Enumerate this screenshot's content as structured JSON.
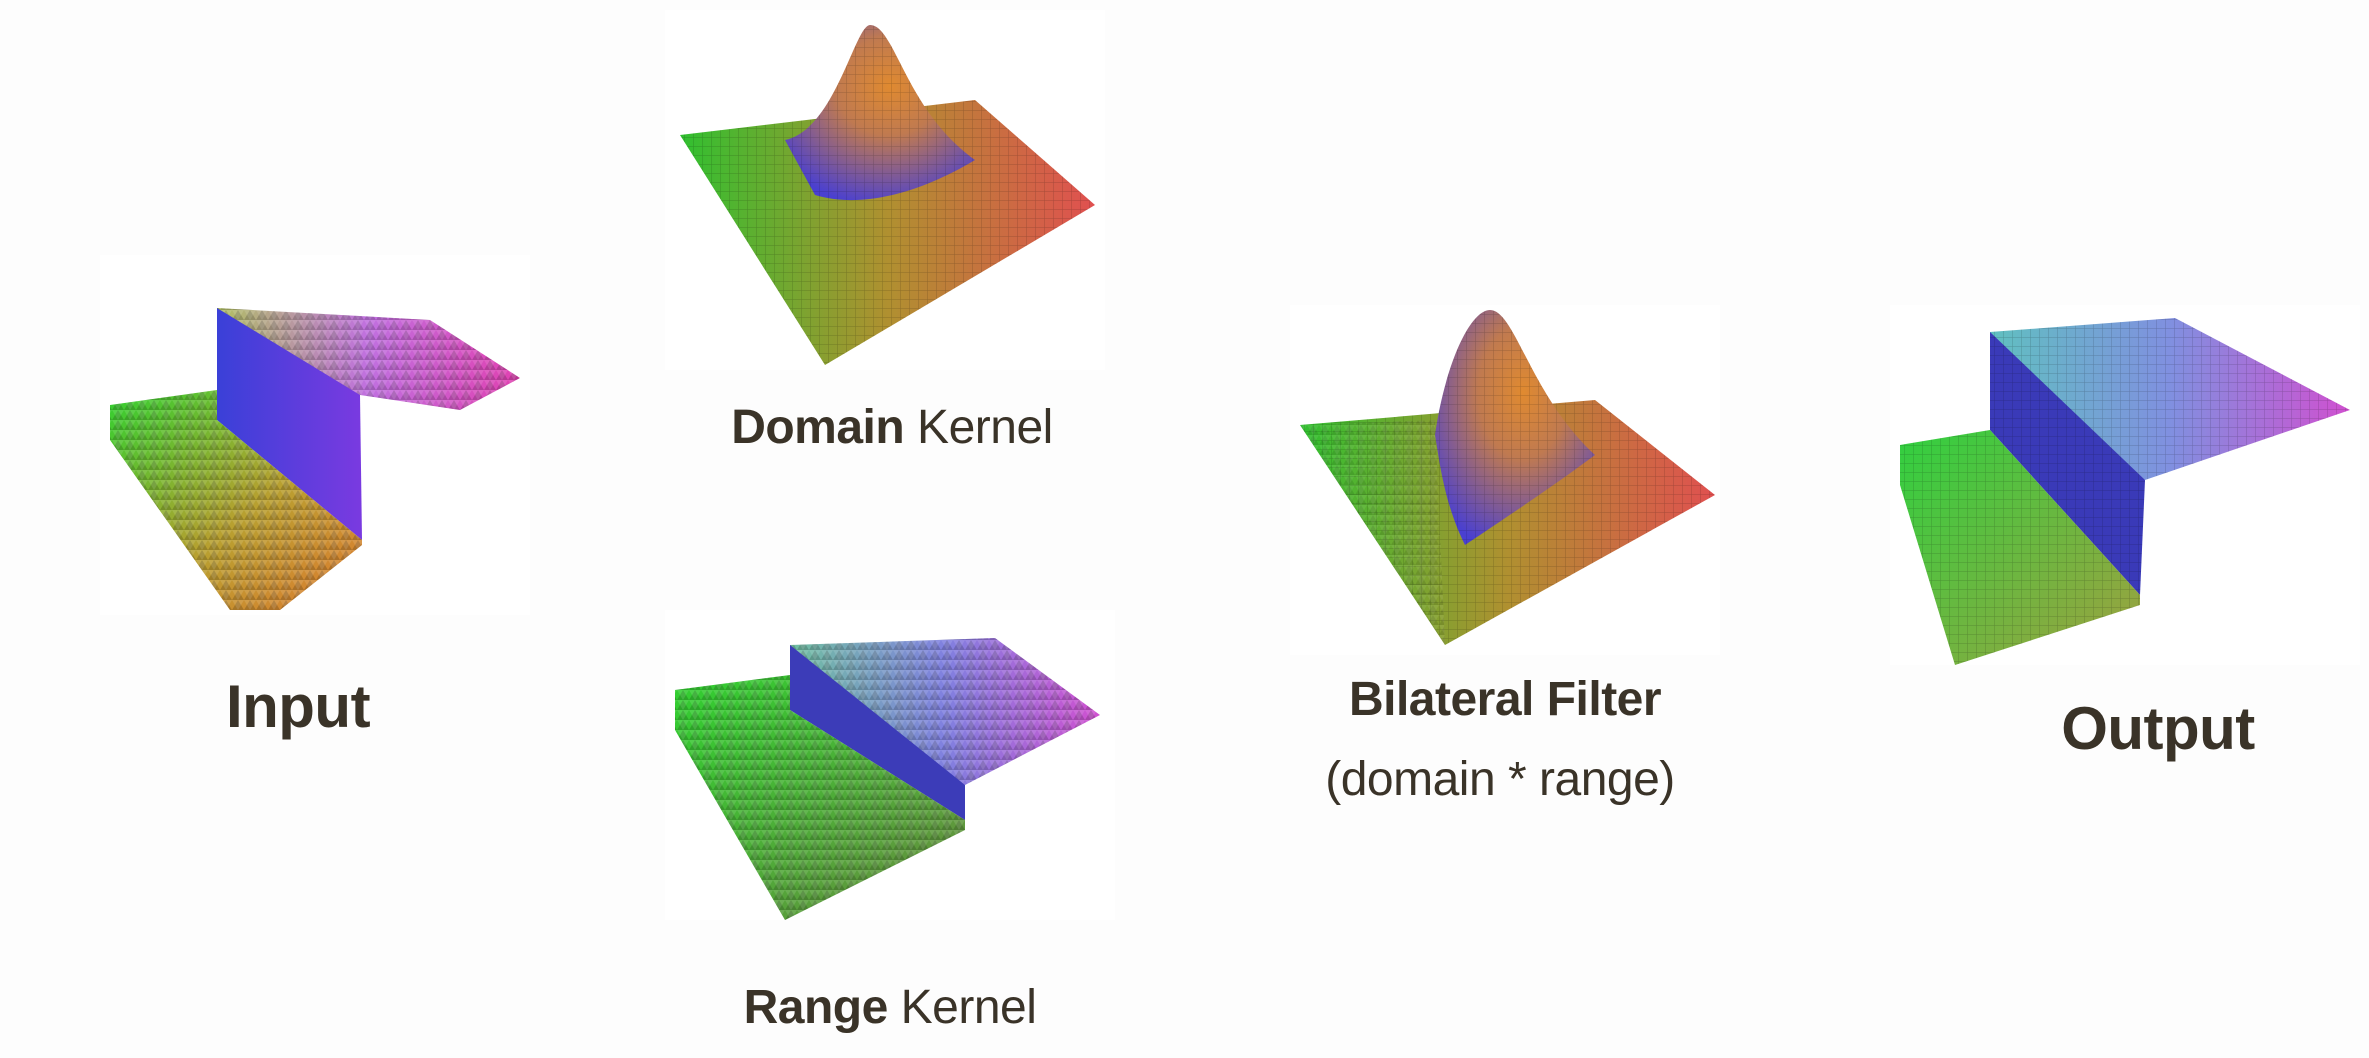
{
  "labels": {
    "input": "Input",
    "domain_bold": "Domain",
    "domain_rest": " Kernel",
    "range_bold": "Range",
    "range_rest": " Kernel",
    "bilateral_title": "Bilateral Filter",
    "bilateral_sub": "(domain * range)",
    "output": "Output"
  },
  "panels": {
    "input": "noisy-step-surface",
    "domain": "gaussian-surface",
    "range": "step-surface",
    "bilateral": "gaussian-times-step-surface",
    "output": "smoothed-step-surface"
  },
  "colors": {
    "green": "#2fcf2f",
    "orange": "#e9902a",
    "blue": "#4b4fe0",
    "magenta": "#e040c8",
    "text": "#3a3328"
  }
}
